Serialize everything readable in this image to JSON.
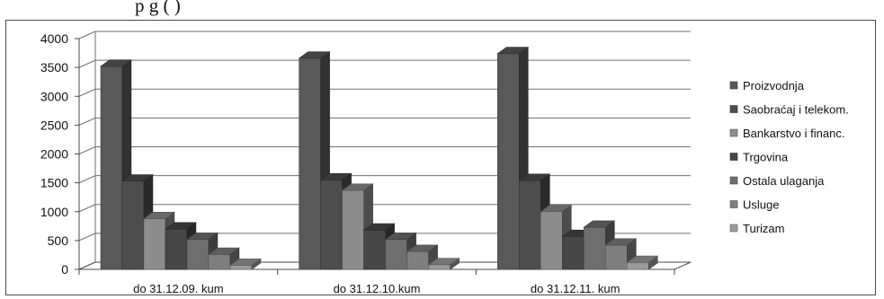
{
  "top_text": "p                                   g        (           )",
  "chart_data": {
    "type": "bar",
    "style": "3d-clustered-column",
    "categories": [
      "do 31.12.09. kum",
      "do 31.12.10.kum",
      "do 31.12.11. kum"
    ],
    "series": [
      {
        "name": "Proizvodnja",
        "color": "#595959",
        "values": [
          3520,
          3660,
          3740
        ]
      },
      {
        "name": "Saobraćaj i telekom.",
        "color": "#4d4d4d",
        "values": [
          1530,
          1550,
          1540
        ]
      },
      {
        "name": "Bankarstvo i financ.",
        "color": "#8c8c8c",
        "values": [
          880,
          1370,
          1000
        ]
      },
      {
        "name": "Trgovina",
        "color": "#474747",
        "values": [
          700,
          680,
          570
        ]
      },
      {
        "name": "Ostala ulaganja",
        "color": "#6e6e6e",
        "values": [
          520,
          520,
          730
        ]
      },
      {
        "name": "Usluge",
        "color": "#7f7f7f",
        "values": [
          260,
          310,
          420
        ]
      },
      {
        "name": "Turizam",
        "color": "#9a9a9a",
        "values": [
          70,
          80,
          120
        ]
      }
    ],
    "yticks": [
      0,
      500,
      1000,
      1500,
      2000,
      2500,
      3000,
      3500,
      4000
    ],
    "ylim": [
      0,
      4000
    ],
    "grid": true,
    "legend_position": "right"
  }
}
